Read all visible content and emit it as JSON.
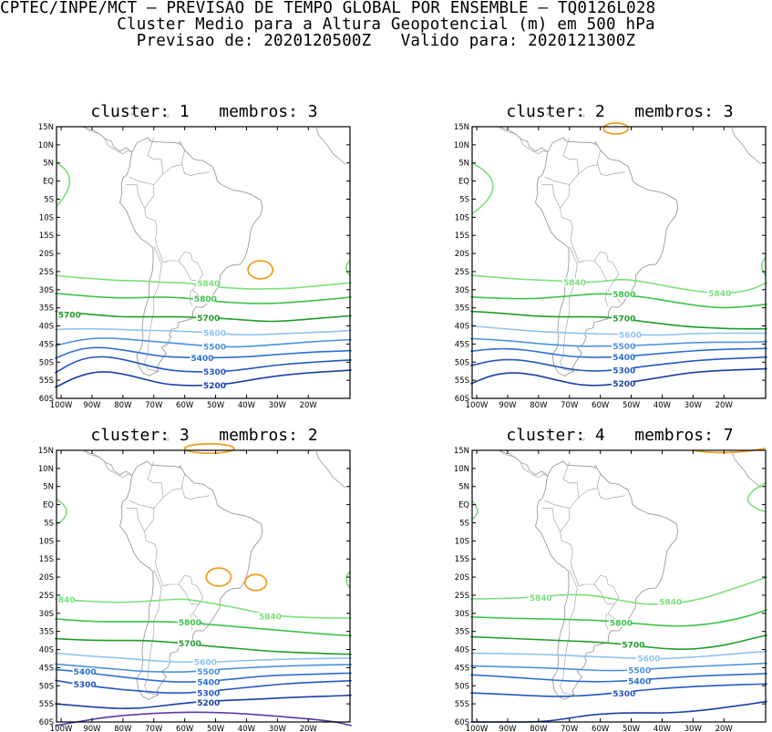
{
  "header": {
    "line1": "CPTEC/INPE/MCT – PREVISAO DE TEMPO GLOBAL POR ENSEMBLE – TQ0126L028",
    "line2": "Cluster Medio para a Altura Geopotencial (m) em 500 hPa",
    "line3": "Previsao de: 2020120500Z   Valido para: 2020121300Z"
  },
  "lat_labels": [
    "15N",
    "10N",
    "5N",
    "EQ",
    "5S",
    "10S",
    "15S",
    "20S",
    "25S",
    "30S",
    "35S",
    "40S",
    "45S",
    "50S",
    "55S",
    "60S"
  ],
  "lon_labels": [
    "100W",
    "90W",
    "80W",
    "70W",
    "60W",
    "50W",
    "40W",
    "30W",
    "20W"
  ],
  "colors": {
    "c5200": "#1a3fa8",
    "c5300": "#2457c2",
    "c5400": "#2c6fd6",
    "c5500": "#4a91e2",
    "c5600": "#8fc3f2",
    "c5700": "#1f9e2a",
    "c5800": "#3cc44a",
    "c5840": "#7be07b",
    "c5900": "#f29b1d",
    "c5100": "#5a3aa6",
    "coast": "#9a9a9a"
  },
  "panels": [
    {
      "title": "cluster: 1   membros: 3",
      "labels": [
        {
          "text": "5840",
          "key": "c5840"
        },
        {
          "text": "5800",
          "key": "c5800"
        },
        {
          "text": "5700",
          "key": "c5700"
        },
        {
          "text": "5700",
          "key": "c5700"
        },
        {
          "text": "5600",
          "key": "c5600"
        },
        {
          "text": "5500",
          "key": "c5500"
        },
        {
          "text": "5400",
          "key": "c5400"
        },
        {
          "text": "5300",
          "key": "c5300"
        },
        {
          "text": "5200",
          "key": "c5200"
        }
      ]
    },
    {
      "title": "cluster: 2   membros: 3",
      "labels": [
        {
          "text": "5840",
          "key": "c5840"
        },
        {
          "text": "5800",
          "key": "c5800"
        },
        {
          "text": "5840",
          "key": "c5840"
        },
        {
          "text": "5700",
          "key": "c5700"
        },
        {
          "text": "5600",
          "key": "c5600"
        },
        {
          "text": "5500",
          "key": "c5500"
        },
        {
          "text": "5400",
          "key": "c5400"
        },
        {
          "text": "5300",
          "key": "c5300"
        },
        {
          "text": "5200",
          "key": "c5200"
        }
      ]
    },
    {
      "title": "cluster: 3   membros: 2",
      "labels": [
        {
          "text": "840",
          "key": "c5840"
        },
        {
          "text": "5840",
          "key": "c5840"
        },
        {
          "text": "5800",
          "key": "c5800"
        },
        {
          "text": "5700",
          "key": "c5700"
        },
        {
          "text": "5600",
          "key": "c5600"
        },
        {
          "text": "5400",
          "key": "c5400"
        },
        {
          "text": "5500",
          "key": "c5500"
        },
        {
          "text": "5300",
          "key": "c5300"
        },
        {
          "text": "5400",
          "key": "c5400"
        },
        {
          "text": "5300",
          "key": "c5300"
        },
        {
          "text": "5200",
          "key": "c5200"
        }
      ]
    },
    {
      "title": "cluster: 4   membros: 7",
      "labels": [
        {
          "text": "5840",
          "key": "c5840"
        },
        {
          "text": "5840",
          "key": "c5840"
        },
        {
          "text": "5800",
          "key": "c5800"
        },
        {
          "text": "5700",
          "key": "c5700"
        },
        {
          "text": "5600",
          "key": "c5600"
        },
        {
          "text": "5500",
          "key": "c5500"
        },
        {
          "text": "5400",
          "key": "c5400"
        },
        {
          "text": "5300",
          "key": "c5300"
        }
      ]
    }
  ]
}
